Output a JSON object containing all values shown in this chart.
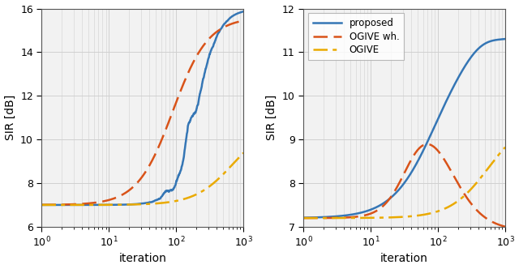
{
  "xlim": [
    1,
    1000
  ],
  "left_ylim": [
    6,
    16
  ],
  "right_ylim": [
    7,
    12
  ],
  "left_yticks": [
    6,
    8,
    10,
    12,
    14,
    16
  ],
  "right_yticks": [
    7,
    8,
    9,
    10,
    11,
    12
  ],
  "xlabel": "iteration",
  "ylabel": "SIR [dB]",
  "legend_labels": [
    "proposed",
    "OGIVE wh.",
    "OGIVE"
  ],
  "colors": [
    "#3576b5",
    "#d95319",
    "#eaaa00"
  ],
  "linewidths": [
    1.8,
    1.8,
    1.8
  ],
  "grid_color": "#d0d0d0",
  "axes_facecolor": "#f2f2f2",
  "background_color": "#ffffff",
  "tick_fontsize": 9,
  "label_fontsize": 10
}
